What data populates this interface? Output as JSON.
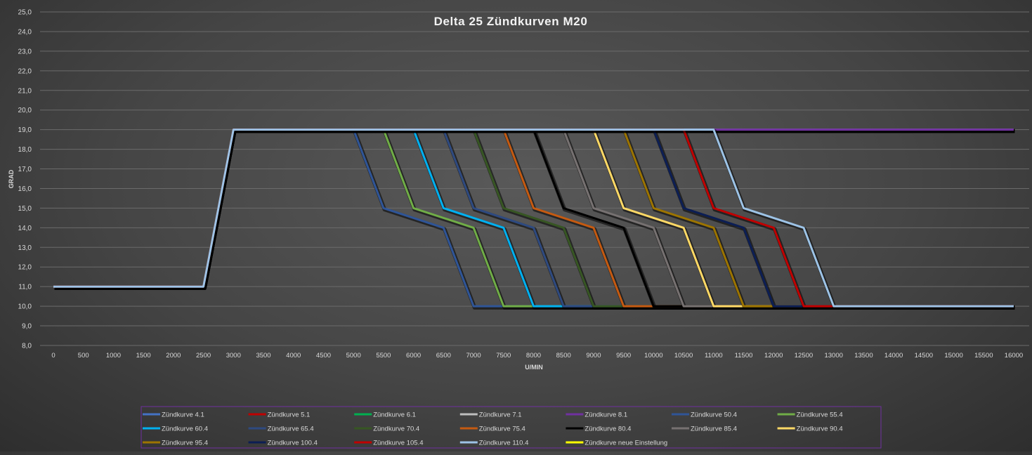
{
  "chart_data": {
    "type": "line",
    "title": "Delta 25 Zündkurven M20",
    "xlabel": "U/MIN",
    "ylabel": "GRAD",
    "xlim": [
      0,
      16000
    ],
    "ylim": [
      8,
      25
    ],
    "x_ticks": [
      "0",
      "500",
      "1000",
      "1500",
      "2000",
      "2500",
      "3000",
      "3500",
      "4000",
      "4500",
      "5000",
      "5500",
      "6000",
      "6500",
      "7000",
      "7500",
      "8000",
      "8500",
      "9000",
      "9500",
      "10000",
      "10500",
      "11000",
      "11500",
      "12000",
      "12500",
      "13000",
      "13500",
      "14000",
      "14500",
      "15000",
      "15500",
      "16000"
    ],
    "y_ticks": [
      "8,0",
      "9,0",
      "10,0",
      "11,0",
      "12,0",
      "13,0",
      "14,0",
      "15,0",
      "16,0",
      "17,0",
      "18,0",
      "19,0",
      "20,0",
      "21,0",
      "22,0",
      "23,0",
      "24,0",
      "25,0"
    ],
    "grid": "horizontal",
    "legend_position": "bottom",
    "series": [
      {
        "name": "Zündkurve 4.1",
        "color": "#4472c4",
        "x": [
          0,
          2500,
          3000,
          16000
        ],
        "y": [
          11,
          11,
          19,
          19
        ]
      },
      {
        "name": "Zündkurve 5.1",
        "color": "#c00000",
        "x": [
          0,
          2500,
          3000,
          16000
        ],
        "y": [
          11,
          11,
          19,
          19
        ]
      },
      {
        "name": "Zündkurve 6.1",
        "color": "#00b050",
        "x": [
          0,
          2500,
          3000,
          16000
        ],
        "y": [
          11,
          11,
          19,
          19
        ]
      },
      {
        "name": "Zündkurve 7.1",
        "color": "#bfbfbf",
        "x": [
          0,
          2500,
          3000,
          16000
        ],
        "y": [
          11,
          11,
          19,
          19
        ]
      },
      {
        "name": "Zündkurve 8.1",
        "color": "#7030a0",
        "x": [
          0,
          2500,
          3000,
          16000
        ],
        "y": [
          11,
          11,
          19,
          19
        ]
      },
      {
        "name": "Zündkurve 50.4",
        "color": "#2f5597",
        "x": [
          0,
          2500,
          3000,
          5000,
          5500,
          6500,
          7000,
          16000
        ],
        "y": [
          11,
          11,
          19,
          19,
          15,
          14,
          10,
          10
        ]
      },
      {
        "name": "Zündkurve 55.4",
        "color": "#70ad47",
        "x": [
          0,
          2500,
          3000,
          5500,
          6000,
          7000,
          7500,
          16000
        ],
        "y": [
          11,
          11,
          19,
          19,
          15,
          14,
          10,
          10
        ]
      },
      {
        "name": "Zündkurve 60.4",
        "color": "#00b0f0",
        "x": [
          0,
          2500,
          3000,
          6000,
          6500,
          7500,
          8000,
          16000
        ],
        "y": [
          11,
          11,
          19,
          19,
          15,
          14,
          10,
          10
        ]
      },
      {
        "name": "Zündkurve 65.4",
        "color": "#2e4a80",
        "x": [
          0,
          2500,
          3000,
          6500,
          7000,
          8000,
          8500,
          16000
        ],
        "y": [
          11,
          11,
          19,
          19,
          15,
          14,
          10,
          10
        ]
      },
      {
        "name": "Zündkurve 70.4",
        "color": "#375623",
        "x": [
          0,
          2500,
          3000,
          7000,
          7500,
          8500,
          9000,
          16000
        ],
        "y": [
          11,
          11,
          19,
          19,
          15,
          14,
          10,
          10
        ]
      },
      {
        "name": "Zündkurve 75.4",
        "color": "#c55a11",
        "x": [
          0,
          2500,
          3000,
          7500,
          8000,
          9000,
          9500,
          16000
        ],
        "y": [
          11,
          11,
          19,
          19,
          15,
          14,
          10,
          10
        ]
      },
      {
        "name": "Zündkurve 80.4",
        "color": "#000000",
        "x": [
          0,
          2500,
          3000,
          8000,
          8500,
          9500,
          10000,
          16000
        ],
        "y": [
          11,
          11,
          19,
          19,
          15,
          14,
          10,
          10
        ]
      },
      {
        "name": "Zündkurve 85.4",
        "color": "#767171",
        "x": [
          0,
          2500,
          3000,
          8500,
          9000,
          10000,
          10500,
          16000
        ],
        "y": [
          11,
          11,
          19,
          19,
          15,
          14,
          10,
          10
        ]
      },
      {
        "name": "Zündkurve 90.4",
        "color": "#ffd966",
        "x": [
          0,
          2500,
          3000,
          9000,
          9500,
          10500,
          11000,
          16000
        ],
        "y": [
          11,
          11,
          19,
          19,
          15,
          14,
          10,
          10
        ]
      },
      {
        "name": "Zündkurve 95.4",
        "color": "#9c7400",
        "x": [
          0,
          2500,
          3000,
          9500,
          10000,
          11000,
          11500,
          16000
        ],
        "y": [
          11,
          11,
          19,
          19,
          15,
          14,
          10,
          10
        ]
      },
      {
        "name": "Zündkurve 100.4",
        "color": "#0c1e54",
        "x": [
          0,
          2500,
          3000,
          10000,
          10500,
          11500,
          12000,
          16000
        ],
        "y": [
          11,
          11,
          19,
          19,
          15,
          14,
          10,
          10
        ]
      },
      {
        "name": "Zündkurve 105.4",
        "color": "#c00000",
        "x": [
          0,
          2500,
          3000,
          10500,
          11000,
          12000,
          12500,
          16000
        ],
        "y": [
          11,
          11,
          19,
          19,
          15,
          14,
          10,
          10
        ]
      },
      {
        "name": "Zündkurve 110.4",
        "color": "#9dc3e6",
        "x": [
          0,
          2500,
          3000,
          11000,
          11500,
          12500,
          13000,
          16000
        ],
        "y": [
          11,
          11,
          19,
          19,
          15,
          14,
          10,
          10
        ]
      },
      {
        "name": "Zündkurve neue Einstellung",
        "color": "#ffff00",
        "x": [],
        "y": []
      }
    ]
  }
}
